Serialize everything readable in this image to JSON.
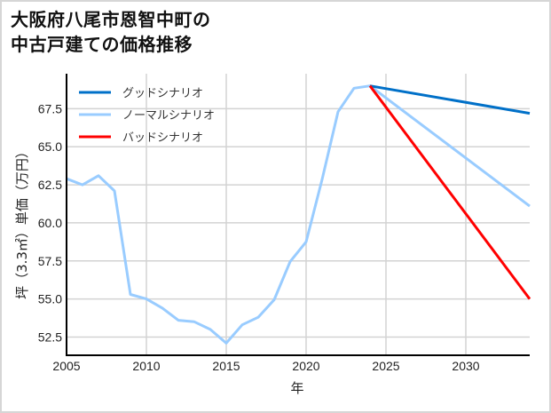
{
  "chart_data": {
    "type": "line",
    "title": "大阪府八尾市恩智中町の中古戸建ての価格推移",
    "title_lines": [
      "大阪府八尾市恩智中町の",
      "中古戸建ての価格推移"
    ],
    "xlabel": "年",
    "ylabel": "坪（3.3㎡）単価（万円）",
    "xlim": [
      2005,
      2034
    ],
    "ylim": [
      51.3,
      69.8
    ],
    "x_ticks": [
      2005,
      2010,
      2015,
      2020,
      2025,
      2030
    ],
    "y_ticks": [
      52.5,
      55.0,
      57.5,
      60.0,
      62.5,
      65.0,
      67.5
    ],
    "y_tick_labels": [
      "52.5",
      "55.0",
      "57.5",
      "60.0",
      "62.5",
      "65.0",
      "67.5"
    ],
    "grid": true,
    "legend_position": "upper left",
    "series": [
      {
        "name": "グッドシナリオ",
        "color": "#0070c8",
        "x": [
          2024,
          2034
        ],
        "values": [
          69.0,
          67.2
        ]
      },
      {
        "name": "ノーマルシナリオ",
        "color": "#99ccff",
        "x": [
          2005,
          2006,
          2007,
          2008,
          2009,
          2010,
          2011,
          2012,
          2013,
          2014,
          2015,
          2016,
          2017,
          2018,
          2019,
          2020,
          2021,
          2022,
          2023,
          2024,
          2034
        ],
        "values": [
          62.9,
          62.5,
          63.1,
          62.1,
          55.3,
          55.0,
          54.4,
          53.6,
          53.5,
          53.0,
          52.1,
          53.3,
          53.8,
          54.95,
          57.45,
          58.75,
          62.85,
          67.3,
          68.85,
          69.0,
          61.1
        ]
      },
      {
        "name": "バッドシナリオ",
        "color": "#ff0000",
        "x": [
          2024,
          2034
        ],
        "values": [
          69.0,
          55.0
        ]
      }
    ]
  }
}
